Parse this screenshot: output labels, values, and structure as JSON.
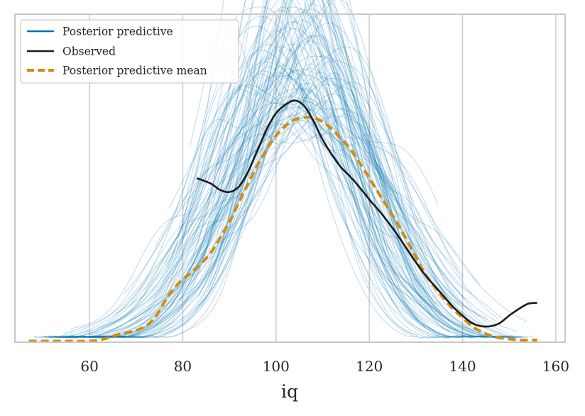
{
  "chart_data": {
    "type": "line",
    "title": "",
    "xlabel": "iq",
    "ylabel": "",
    "xlim": [
      44,
      162
    ],
    "ylim": [
      0,
      0.03
    ],
    "xticks": [
      "60",
      "80",
      "100",
      "120",
      "140",
      "160"
    ],
    "yticks_visible": false,
    "grid": "vertical",
    "legend_position": "top-left",
    "legend": [
      "Posterior predictive",
      "Observed",
      "Posterior predictive mean"
    ],
    "colors": {
      "posterior_predictive": "#0072b2",
      "observed": "#1a1a1a",
      "mean": "#d58c0d",
      "grid": "#cccccc",
      "frame": "#c8c8c8"
    },
    "series": [
      {
        "name": "Observed",
        "style": "solid",
        "x": [
          83,
          86,
          88,
          90,
          92,
          94,
          96,
          98,
          100,
          102,
          104,
          106,
          108,
          110,
          112,
          114,
          116,
          118,
          120,
          122,
          124,
          126,
          128,
          130,
          132,
          134,
          136,
          138,
          140,
          142,
          144,
          146,
          148,
          150,
          152,
          154,
          156
        ],
        "y": [
          0.0154,
          0.0149,
          0.0143,
          0.0141,
          0.0146,
          0.016,
          0.018,
          0.02,
          0.0215,
          0.0223,
          0.0227,
          0.0222,
          0.0208,
          0.019,
          0.0176,
          0.0164,
          0.0155,
          0.0145,
          0.0134,
          0.0124,
          0.0113,
          0.0101,
          0.0088,
          0.0075,
          0.0063,
          0.0053,
          0.0043,
          0.0033,
          0.0025,
          0.0018,
          0.0015,
          0.0015,
          0.0018,
          0.0025,
          0.0031,
          0.0036,
          0.0037
        ]
      },
      {
        "name": "Posterior predictive mean",
        "style": "dashed",
        "x": [
          47,
          50,
          55,
          60,
          62,
          64,
          66,
          68,
          70,
          72,
          74,
          76,
          78,
          80,
          82,
          84,
          86,
          88,
          90,
          92,
          94,
          96,
          98,
          100,
          102,
          104,
          106,
          108,
          110,
          112,
          114,
          116,
          118,
          120,
          122,
          124,
          126,
          128,
          130,
          132,
          134,
          136,
          138,
          140,
          142,
          144,
          146,
          148,
          150,
          152,
          154,
          156
        ],
        "y": [
          0.0001,
          0.0001,
          0.0001,
          0.0001,
          0.0002,
          0.0004,
          0.0007,
          0.0009,
          0.0011,
          0.0015,
          0.0023,
          0.0037,
          0.005,
          0.0059,
          0.0066,
          0.0074,
          0.0084,
          0.0098,
          0.0113,
          0.0131,
          0.0149,
          0.0166,
          0.0181,
          0.0194,
          0.0203,
          0.0209,
          0.0211,
          0.0211,
          0.0207,
          0.02,
          0.0191,
          0.0181,
          0.0168,
          0.0154,
          0.014,
          0.0126,
          0.0112,
          0.0096,
          0.008,
          0.0064,
          0.0052,
          0.0041,
          0.0031,
          0.0023,
          0.0015,
          0.001,
          0.0006,
          0.0004,
          0.0003,
          0.0002,
          0.0002,
          0.0002
        ]
      },
      {
        "name": "Posterior predictive",
        "style": "ensemble",
        "draws": 100,
        "note_center_range": [
          95,
          115
        ],
        "peak_range": [
          0.016,
          0.032
        ]
      }
    ]
  }
}
